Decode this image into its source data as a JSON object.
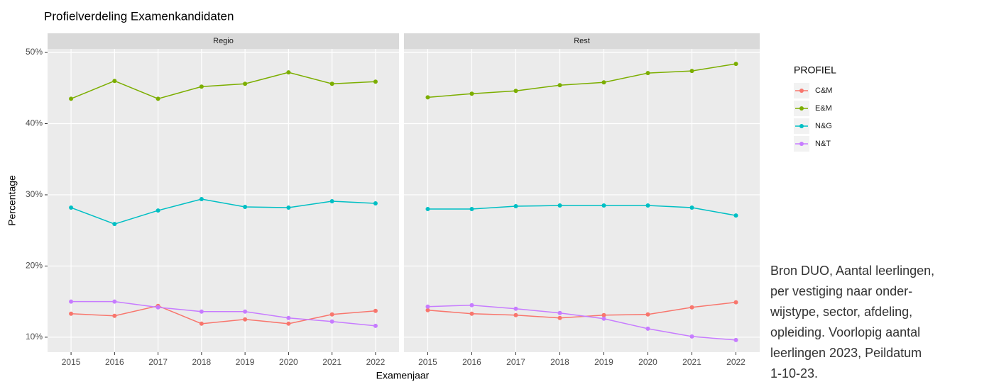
{
  "chart_data": {
    "type": "line",
    "title": "Profielverdeling Examenkandidaten",
    "x_label": "Examenjaar",
    "y_label": "Percentage",
    "legend_title": "PROFIEL",
    "x": [
      2015,
      2016,
      2017,
      2018,
      2019,
      2020,
      2021,
      2022
    ],
    "xlim": [
      2014.46,
      2022.54
    ],
    "xticks": [
      2015,
      2016,
      2017,
      2018,
      2019,
      2020,
      2021,
      2022
    ],
    "ylim": [
      7.9,
      50.5
    ],
    "yticks": [
      {
        "value": 10,
        "label": "10%"
      },
      {
        "value": 20,
        "label": "20%"
      },
      {
        "value": 30,
        "label": "30%"
      },
      {
        "value": 40,
        "label": "40%"
      },
      {
        "value": 50,
        "label": "50%"
      }
    ],
    "grid": true,
    "facets": [
      {
        "title": "Regio",
        "series": [
          {
            "name": "C&M",
            "color": "#F8766D",
            "values": [
              13.3,
              13.0,
              14.4,
              11.9,
              12.5,
              11.9,
              13.2,
              13.7
            ]
          },
          {
            "name": "E&M",
            "color": "#7CAE00",
            "values": [
              43.5,
              46.0,
              43.5,
              45.2,
              45.6,
              47.2,
              45.6,
              45.9
            ]
          },
          {
            "name": "N&G",
            "color": "#00BFC4",
            "values": [
              28.2,
              25.9,
              27.8,
              29.4,
              28.3,
              28.2,
              29.1,
              28.8
            ]
          },
          {
            "name": "N&T",
            "color": "#C77CFF",
            "values": [
              15.0,
              15.0,
              14.2,
              13.6,
              13.6,
              12.7,
              12.2,
              11.6
            ]
          }
        ]
      },
      {
        "title": "Rest",
        "series": [
          {
            "name": "C&M",
            "color": "#F8766D",
            "values": [
              13.8,
              13.3,
              13.1,
              12.7,
              13.1,
              13.2,
              14.2,
              14.9
            ]
          },
          {
            "name": "E&M",
            "color": "#7CAE00",
            "values": [
              43.7,
              44.2,
              44.6,
              45.4,
              45.8,
              47.1,
              47.4,
              48.4
            ]
          },
          {
            "name": "N&G",
            "color": "#00BFC4",
            "values": [
              28.0,
              28.0,
              28.4,
              28.5,
              28.5,
              28.5,
              28.2,
              27.1
            ]
          },
          {
            "name": "N&T",
            "color": "#C77CFF",
            "values": [
              14.3,
              14.5,
              14.0,
              13.4,
              12.6,
              11.2,
              10.1,
              9.6
            ]
          }
        ]
      }
    ]
  },
  "note": {
    "lines": [
      "Bron DUO, Aantal leerlingen,",
      "per vestiging naar onder-",
      "wijstype, sector, afdeling,",
      "opleiding. Voorlopig aantal",
      "leerlingen 2023, Peildatum",
      "1-10-23."
    ]
  }
}
